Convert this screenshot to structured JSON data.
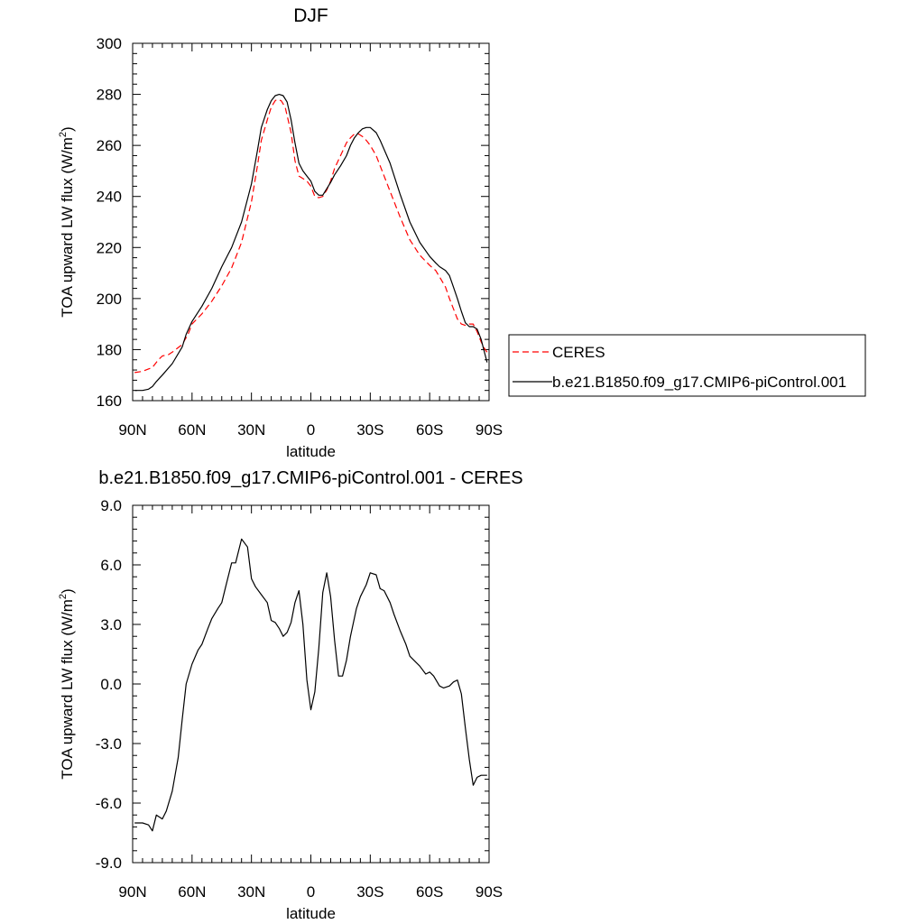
{
  "chart_data": [
    {
      "type": "line",
      "title": "DJF",
      "xlabel": "latitude",
      "ylabel_main": "TOA upward LW flux (W/m",
      "ylabel_sup": "2",
      "ylabel_close": ")",
      "xlim": [
        90,
        -90
      ],
      "ylim": [
        160,
        300
      ],
      "x_ticks": [
        90,
        60,
        30,
        0,
        -30,
        -60,
        -90
      ],
      "x_tick_labels": [
        "90N",
        "60N",
        "30N",
        "0",
        "30S",
        "60S",
        "90S"
      ],
      "y_ticks": [
        160,
        180,
        200,
        220,
        240,
        260,
        280,
        300
      ],
      "y_tick_labels": [
        "160",
        "180",
        "200",
        "220",
        "240",
        "260",
        "280",
        "300"
      ],
      "legend": "right",
      "series": [
        {
          "name": "CERES",
          "color": "#ff0000",
          "dash": "dashed",
          "x": [
            89,
            85,
            80,
            77,
            75,
            72,
            70,
            65,
            62,
            60,
            55,
            50,
            45,
            40,
            35,
            30,
            27,
            25,
            22,
            20,
            18,
            17,
            15,
            13,
            10,
            8,
            6,
            4,
            2,
            0,
            -2,
            -4,
            -6,
            -8,
            -10,
            -12,
            -15,
            -18,
            -20,
            -22,
            -24,
            -26,
            -28,
            -30,
            -33,
            -35,
            -40,
            -45,
            -50,
            -55,
            -60,
            -63,
            -65,
            -68,
            -70,
            -72,
            -74,
            -76,
            -78,
            -80,
            -82,
            -84,
            -86,
            -88,
            -89
          ],
          "y": [
            171,
            171.5,
            173,
            176,
            177.5,
            178,
            179,
            182,
            186,
            190,
            194,
            199,
            205,
            212,
            222,
            238,
            252,
            262,
            270,
            275,
            277.5,
            278,
            277.5,
            275,
            265,
            254,
            248,
            247,
            246,
            244,
            240,
            239.5,
            240,
            242.5,
            246,
            251,
            256,
            261,
            263,
            264.5,
            264.5,
            263.5,
            262,
            260,
            256,
            252,
            242,
            232,
            223,
            217,
            213,
            211,
            208.5,
            204.5,
            200,
            196,
            192,
            190,
            189.5,
            190,
            190,
            187,
            183,
            180,
            179
          ]
        },
        {
          "name": "b.e21.B1850.f09_g17.CMIP6-piControl.001",
          "color": "#000000",
          "dash": "solid",
          "x": [
            89,
            85,
            82,
            80,
            78,
            75,
            70,
            65,
            63,
            60,
            55,
            50,
            45,
            40,
            35,
            30,
            27,
            25,
            22,
            20,
            18,
            16,
            14,
            12,
            10,
            8,
            6,
            4,
            2,
            0,
            -2,
            -4,
            -6,
            -8,
            -10,
            -12,
            -15,
            -18,
            -20,
            -22,
            -24,
            -26,
            -28,
            -30,
            -33,
            -35,
            -40,
            -45,
            -50,
            -55,
            -60,
            -63,
            -65,
            -68,
            -70,
            -72,
            -74,
            -76,
            -78,
            -80,
            -82,
            -84,
            -86,
            -88,
            -89
          ],
          "y": [
            164,
            164,
            164.5,
            165.5,
            167.5,
            170,
            174.5,
            181,
            186,
            191,
            197,
            204,
            212.5,
            220,
            230,
            245,
            258,
            267,
            274,
            277.5,
            279.5,
            280,
            279.5,
            277,
            270,
            261,
            253,
            250,
            248,
            246,
            242,
            240.5,
            240.5,
            243,
            245.5,
            248.5,
            252,
            256,
            260,
            263,
            265,
            266.5,
            267,
            267,
            265,
            262,
            253,
            241,
            230,
            222,
            216.5,
            214,
            212.5,
            211,
            209,
            204.5,
            200,
            195,
            190.5,
            189,
            189,
            188,
            184,
            178,
            175
          ]
        }
      ]
    },
    {
      "type": "line",
      "title": "b.e21.B1850.f09_g17.CMIP6-piControl.001 - CERES",
      "xlabel": "latitude",
      "ylabel_main": "TOA upward LW flux (W/m",
      "ylabel_sup": "2",
      "ylabel_close": ")",
      "xlim": [
        90,
        -90
      ],
      "ylim": [
        -9,
        9
      ],
      "x_ticks": [
        90,
        60,
        30,
        0,
        -30,
        -60,
        -90
      ],
      "x_tick_labels": [
        "90N",
        "60N",
        "30N",
        "0",
        "30S",
        "60S",
        "90S"
      ],
      "y_ticks": [
        -9,
        -6,
        -3,
        0,
        3,
        6,
        9
      ],
      "y_tick_labels": [
        "-9.0",
        "-6.0",
        "-3.0",
        "0.0",
        "3.0",
        "6.0",
        "9.0"
      ],
      "legend": "none",
      "series": [
        {
          "name": "",
          "color": "#000000",
          "dash": "solid",
          "x": [
            89,
            85,
            82,
            80,
            78,
            75,
            73,
            70,
            67,
            65,
            63,
            60,
            57,
            55,
            52,
            50,
            47,
            45,
            43,
            40,
            38,
            35,
            32,
            30,
            28,
            25,
            22,
            20,
            18,
            16,
            14,
            12,
            10,
            8,
            6,
            4,
            2,
            0,
            -2,
            -4,
            -6,
            -8,
            -10,
            -12,
            -14,
            -16,
            -18,
            -20,
            -23,
            -25,
            -28,
            -30,
            -33,
            -35,
            -37,
            -40,
            -42,
            -45,
            -48,
            -50,
            -53,
            -55,
            -58,
            -60,
            -62,
            -65,
            -67,
            -70,
            -72,
            -74,
            -76,
            -78,
            -80,
            -82,
            -84,
            -86,
            -88,
            -89
          ],
          "y": [
            -7,
            -7,
            -7.1,
            -7.4,
            -6.6,
            -6.8,
            -6.4,
            -5.4,
            -3.7,
            -1.8,
            0,
            1,
            1.7,
            2,
            2.8,
            3.3,
            3.8,
            4.1,
            4.9,
            6.1,
            6.1,
            7.3,
            6.9,
            5.3,
            4.9,
            4.5,
            4.1,
            3.2,
            3.1,
            2.8,
            2.4,
            2.6,
            3.1,
            4.1,
            4.7,
            3,
            0.2,
            -1.3,
            -0.4,
            1.8,
            4.6,
            5.6,
            4.4,
            2.2,
            0.4,
            0.4,
            1.2,
            2.4,
            3.8,
            4.4,
            5,
            5.6,
            5.5,
            4.8,
            4.7,
            4.1,
            3.5,
            2.7,
            2,
            1.4,
            1.1,
            0.9,
            0.5,
            0.6,
            0.4,
            -0.1,
            -0.2,
            -0.1,
            0.1,
            0.2,
            -0.5,
            -2.2,
            -3.8,
            -5.1,
            -4.7,
            -4.6,
            -4.6,
            -4.6
          ]
        }
      ]
    }
  ]
}
